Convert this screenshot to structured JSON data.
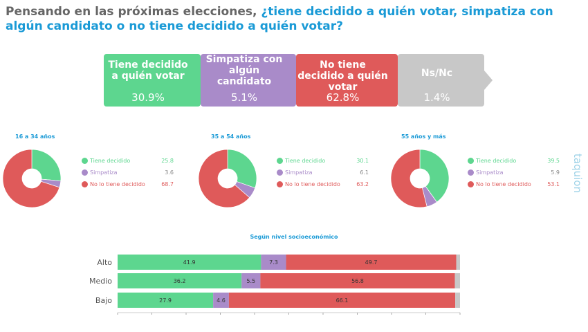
{
  "title": {
    "lead": "Pensando en las próximas elecciones, ",
    "question": "¿tiene decidido a quién votar, simpatiza con algún candidato o no tiene decidido a quién votar?"
  },
  "colors": {
    "decidido": "#5dd68f",
    "simpatiza": "#a98bc9",
    "no_decidido": "#df5a5a",
    "nsnc": "#c8c8c8",
    "accent": "#1a9ad6"
  },
  "banner": [
    {
      "label": "Tiene decidido a quién votar",
      "value": "30.9%"
    },
    {
      "label": "Simpatiza con algún candidato",
      "value": "5.1%"
    },
    {
      "label": "No tiene decidido a quién votar",
      "value": "62.8%"
    },
    {
      "label": "Ns/Nc",
      "value": "1.4%"
    }
  ],
  "logo": "taquion",
  "chart_data": [
    {
      "type": "pie",
      "title": "16 a 34 años",
      "categories": [
        "Tiene decidido",
        "Simpatiza",
        "No lo tiene decidido"
      ],
      "values": [
        25.8,
        3.6,
        68.7
      ]
    },
    {
      "type": "pie",
      "title": "35 a 54 años",
      "categories": [
        "Tiene decidido",
        "Simpatiza",
        "No lo tiene decidido"
      ],
      "values": [
        30.1,
        6.1,
        63.2
      ]
    },
    {
      "type": "pie",
      "title": "55 años y más",
      "categories": [
        "Tiene decidido",
        "Simpatiza",
        "No lo tiene decidido"
      ],
      "values": [
        39.5,
        5.9,
        53.1
      ]
    },
    {
      "type": "bar",
      "stacked": true,
      "orientation": "horizontal",
      "title": "Según nivel socioeconómico",
      "categories": [
        "Alto",
        "Medio",
        "Bajo"
      ],
      "xlim": [
        0,
        100
      ],
      "series": [
        {
          "values": [
            41.9,
            36.2,
            27.9
          ]
        },
        {
          "values": [
            7.3,
            5.5,
            4.6
          ]
        },
        {
          "values": [
            49.7,
            56.8,
            66.1
          ]
        },
        {
          "values": [
            1.1,
            1.5,
            1.4
          ]
        }
      ]
    }
  ]
}
